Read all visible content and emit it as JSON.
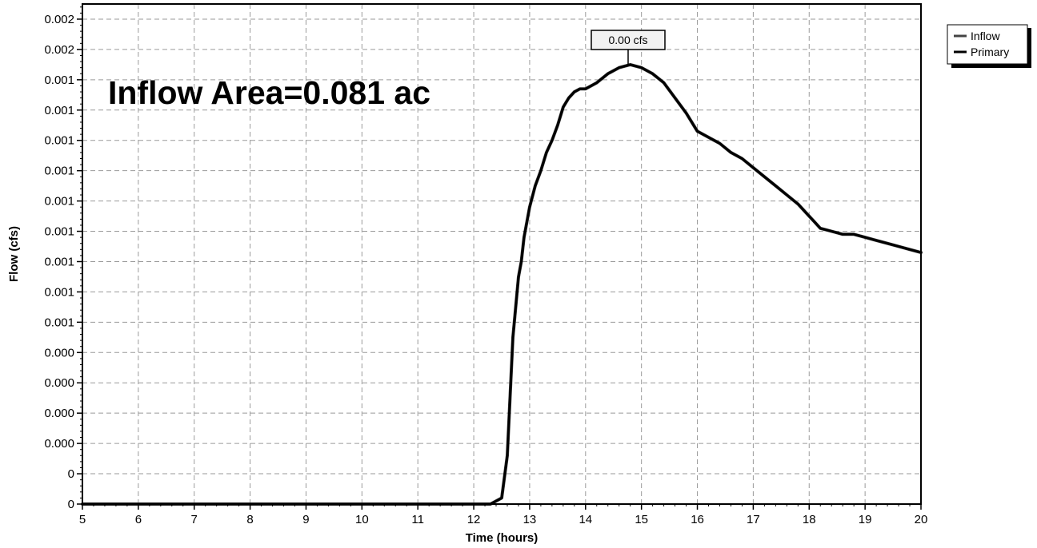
{
  "chart_data": {
    "type": "line",
    "xlabel": "Time  (hours)",
    "ylabel": "Flow  (cfs)",
    "annotation": "Inflow Area=0.081 ac",
    "peak_callout": "0.00 cfs",
    "xlim": [
      5,
      20
    ],
    "ylim": [
      0,
      0.00165
    ],
    "x_ticks": [
      5,
      6,
      7,
      8,
      9,
      10,
      11,
      12,
      13,
      14,
      15,
      16,
      17,
      18,
      19,
      20
    ],
    "y_ticks": [
      {
        "value": 0,
        "label": "0"
      },
      {
        "value": 0.0001,
        "label": "0"
      },
      {
        "value": 0.0002,
        "label": "0.000"
      },
      {
        "value": 0.0003,
        "label": "0.000"
      },
      {
        "value": 0.0004,
        "label": "0.000"
      },
      {
        "value": 0.0005,
        "label": "0.000"
      },
      {
        "value": 0.0006,
        "label": "0.001"
      },
      {
        "value": 0.0007,
        "label": "0.001"
      },
      {
        "value": 0.0008,
        "label": "0.001"
      },
      {
        "value": 0.0009,
        "label": "0.001"
      },
      {
        "value": 0.001,
        "label": "0.001"
      },
      {
        "value": 0.0011,
        "label": "0.001"
      },
      {
        "value": 0.0012,
        "label": "0.001"
      },
      {
        "value": 0.0013,
        "label": "0.001"
      },
      {
        "value": 0.0014,
        "label": "0.001"
      },
      {
        "value": 0.0015,
        "label": "0.002"
      },
      {
        "value": 0.0016,
        "label": "0.002"
      }
    ],
    "grid": true,
    "legend_position": "top-right",
    "series": [
      {
        "name": "Inflow",
        "color": "#444444",
        "x": [
          5,
          12.3,
          12.5,
          12.6,
          12.7,
          12.75,
          12.8,
          12.85,
          12.9,
          12.95,
          13.0,
          13.1,
          13.2,
          13.3,
          13.4,
          13.5,
          13.6,
          13.7,
          13.8,
          13.9,
          14.0,
          14.2,
          14.4,
          14.6,
          14.8,
          15.0,
          15.2,
          15.4,
          15.6,
          15.8,
          16.0,
          16.2,
          16.4,
          16.6,
          16.8,
          17.0,
          17.2,
          17.4,
          17.6,
          17.8,
          18.0,
          18.1,
          18.2,
          18.4,
          18.6,
          18.8,
          19.0,
          19.2,
          19.4,
          19.6,
          19.8,
          20.0
        ],
        "y": [
          0,
          0,
          2e-05,
          0.00016,
          0.00055,
          0.00065,
          0.00075,
          0.0008,
          0.00088,
          0.00093,
          0.00098,
          0.00105,
          0.0011,
          0.00116,
          0.0012,
          0.00125,
          0.00131,
          0.00134,
          0.00136,
          0.00137,
          0.00137,
          0.00139,
          0.00142,
          0.00144,
          0.00145,
          0.00144,
          0.00142,
          0.00139,
          0.00134,
          0.00129,
          0.00123,
          0.00121,
          0.00119,
          0.00116,
          0.00114,
          0.00111,
          0.00108,
          0.00105,
          0.00102,
          0.00099,
          0.00095,
          0.00093,
          0.00091,
          0.0009,
          0.00089,
          0.00089,
          0.00088,
          0.00087,
          0.00086,
          0.00085,
          0.00084,
          0.00083
        ]
      },
      {
        "name": "Primary",
        "color": "#000000",
        "x": [
          5,
          12.3,
          12.5,
          12.6,
          12.7,
          12.75,
          12.8,
          12.85,
          12.9,
          12.95,
          13.0,
          13.1,
          13.2,
          13.3,
          13.4,
          13.5,
          13.6,
          13.7,
          13.8,
          13.9,
          14.0,
          14.2,
          14.4,
          14.6,
          14.8,
          15.0,
          15.2,
          15.4,
          15.6,
          15.8,
          16.0,
          16.2,
          16.4,
          16.6,
          16.8,
          17.0,
          17.2,
          17.4,
          17.6,
          17.8,
          18.0,
          18.1,
          18.2,
          18.4,
          18.6,
          18.8,
          19.0,
          19.2,
          19.4,
          19.6,
          19.8,
          20.0
        ],
        "y": [
          0,
          0,
          2e-05,
          0.00016,
          0.00055,
          0.00065,
          0.00075,
          0.0008,
          0.00088,
          0.00093,
          0.00098,
          0.00105,
          0.0011,
          0.00116,
          0.0012,
          0.00125,
          0.00131,
          0.00134,
          0.00136,
          0.00137,
          0.00137,
          0.00139,
          0.00142,
          0.00144,
          0.00145,
          0.00144,
          0.00142,
          0.00139,
          0.00134,
          0.00129,
          0.00123,
          0.00121,
          0.00119,
          0.00116,
          0.00114,
          0.00111,
          0.00108,
          0.00105,
          0.00102,
          0.00099,
          0.00095,
          0.00093,
          0.00091,
          0.0009,
          0.00089,
          0.00089,
          0.00088,
          0.00087,
          0.00086,
          0.00085,
          0.00084,
          0.00083
        ]
      }
    ]
  }
}
